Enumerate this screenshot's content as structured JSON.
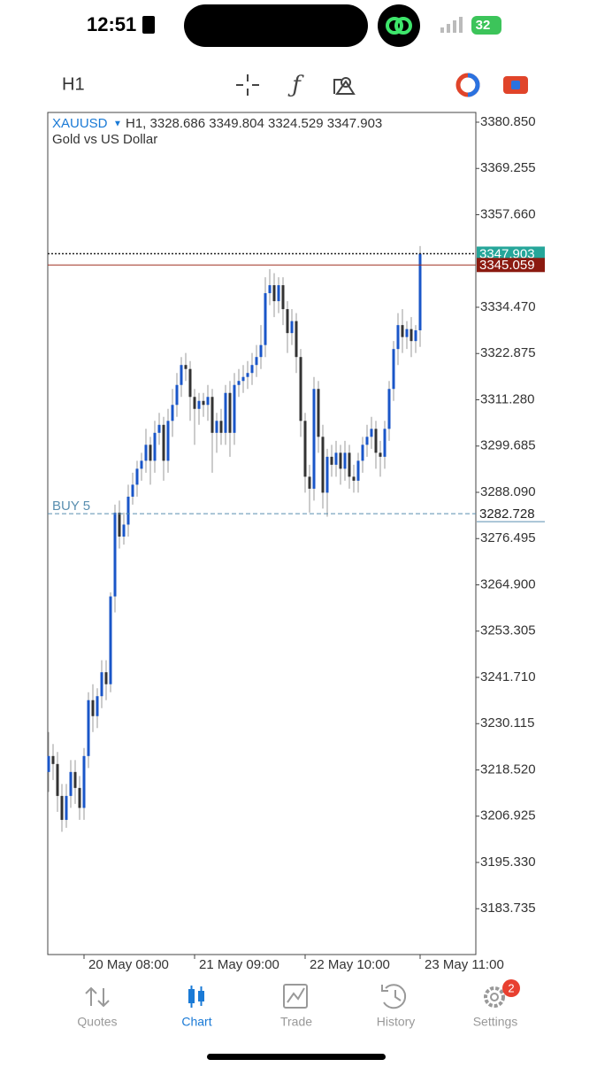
{
  "status_bar": {
    "time": "12:51",
    "battery": "32"
  },
  "toolbar": {
    "timeframe": "H1"
  },
  "chart_data": {
    "type": "candlestick",
    "symbol": "XAUUSD",
    "info": "H1, 3328.686 3349.804 3324.529 3347.903",
    "subtitle": "Gold vs US Dollar",
    "up_color": "#1a56c8",
    "down_color": "#333333",
    "categories": [
      null,
      null,
      null,
      null,
      null,
      null,
      null,
      null,
      "20 May 08:00",
      null,
      null,
      null,
      null,
      null,
      null,
      null,
      null,
      null,
      null,
      null,
      null,
      null,
      null,
      null,
      null,
      null,
      null,
      null,
      null,
      null,
      null,
      null,
      null,
      "21 May 09:00",
      null,
      null,
      null,
      null,
      null,
      null,
      null,
      null,
      null,
      null,
      null,
      null,
      null,
      null,
      null,
      null,
      null,
      null,
      null,
      null,
      null,
      null,
      null,
      null,
      "22 May 10:00",
      null,
      null,
      null,
      null,
      null,
      null,
      null,
      null,
      null,
      null,
      null,
      null,
      null,
      null,
      null,
      null,
      null,
      null,
      null,
      null,
      null,
      null,
      null,
      null,
      null,
      "23 May 11:00"
    ],
    "open": [
      3218,
      3222,
      3220,
      3212,
      3206,
      3212,
      3218,
      3214,
      3209,
      3222,
      3236,
      3232,
      3237,
      3243,
      3240,
      3262,
      3283,
      3277,
      3280,
      3287,
      3290,
      3294,
      3296,
      3300,
      3296,
      3303,
      3305,
      3296,
      3306,
      3310,
      3315,
      3320,
      3319,
      3312,
      3309,
      3311,
      3310,
      3312,
      3303,
      3306,
      3303,
      3313,
      3303,
      3315,
      3316,
      3317,
      3318,
      3320,
      3322,
      3325,
      3338,
      3340,
      3336,
      3340,
      3334,
      3328,
      3331,
      3322,
      3306,
      3292,
      3289,
      3314,
      3302,
      3288,
      3297,
      3295,
      3298,
      3294,
      3298,
      3292,
      3291,
      3296,
      3300,
      3302,
      3304,
      3298,
      3297,
      3304,
      3314,
      3324,
      3330,
      3327,
      3329,
      3326,
      3328.686
    ],
    "high": [
      3228,
      3225,
      3223,
      3215,
      3215,
      3221,
      3221,
      3217,
      3224,
      3238,
      3240,
      3239,
      3246,
      3246,
      3263,
      3285,
      3286,
      3283,
      3290,
      3293,
      3296,
      3298,
      3304,
      3302,
      3306,
      3308,
      3307,
      3309,
      3314,
      3318,
      3322,
      3323,
      3321,
      3314,
      3313,
      3313,
      3315,
      3314,
      3308,
      3309,
      3315,
      3316,
      3318,
      3319,
      3320,
      3321,
      3323,
      3325,
      3330,
      3342,
      3344,
      3343,
      3342,
      3342,
      3336,
      3334,
      3333,
      3324,
      3308,
      3295,
      3317,
      3316,
      3305,
      3299,
      3300,
      3301,
      3300,
      3301,
      3300,
      3295,
      3298,
      3302,
      3305,
      3307,
      3306,
      3301,
      3306,
      3316,
      3326,
      3333,
      3334,
      3331,
      3332,
      3330,
      3349.804
    ],
    "low": [
      3213,
      3216,
      3208,
      3203,
      3204,
      3209,
      3210,
      3206,
      3206,
      3219,
      3228,
      3229,
      3234,
      3236,
      3238,
      3258,
      3274,
      3275,
      3277,
      3285,
      3287,
      3291,
      3293,
      3290,
      3293,
      3300,
      3291,
      3293,
      3302,
      3307,
      3312,
      3316,
      3306,
      3300,
      3305,
      3307,
      3306,
      3293,
      3298,
      3300,
      3300,
      3297,
      3300,
      3312,
      3313,
      3314,
      3315,
      3317,
      3319,
      3322,
      3335,
      3332,
      3333,
      3330,
      3323,
      3325,
      3318,
      3302,
      3288,
      3283,
      3286,
      3298,
      3284,
      3282,
      3292,
      3292,
      3290,
      3291,
      3289,
      3288,
      3288,
      3293,
      3297,
      3299,
      3294,
      3292,
      3294,
      3301,
      3311,
      3320,
      3323,
      3324,
      3322,
      3323,
      3324.529
    ],
    "close": [
      3222,
      3220,
      3212,
      3206,
      3212,
      3218,
      3214,
      3209,
      3222,
      3236,
      3232,
      3237,
      3243,
      3240,
      3262,
      3283,
      3277,
      3280,
      3287,
      3290,
      3294,
      3296,
      3300,
      3296,
      3303,
      3305,
      3296,
      3306,
      3310,
      3315,
      3320,
      3319,
      3312,
      3309,
      3311,
      3310,
      3312,
      3303,
      3306,
      3303,
      3313,
      3303,
      3315,
      3316,
      3317,
      3318,
      3320,
      3322,
      3325,
      3338,
      3340,
      3336,
      3340,
      3334,
      3328,
      3331,
      3322,
      3306,
      3292,
      3289,
      3314,
      3302,
      3288,
      3297,
      3295,
      3298,
      3294,
      3298,
      3292,
      3291,
      3296,
      3300,
      3302,
      3304,
      3298,
      3297,
      3304,
      3314,
      3324,
      3330,
      3327,
      3329,
      3326,
      3328.686,
      3347.903
    ],
    "ylim": [
      3172.25,
      3383.29
    ],
    "yticks": [
      {
        "value": 3380.85,
        "label": "3380.850"
      },
      3369.255,
      {
        "value": 3357.66,
        "label": "3357.660"
      },
      {
        "value": 3334.47,
        "label": "3334.470"
      },
      3322.875,
      {
        "value": 3311.28,
        "label": "3311.280"
      },
      3299.685,
      {
        "value": 3288.09,
        "label": "3288.090"
      },
      3276.495,
      {
        "value": 3264.9,
        "label": "3264.900"
      },
      3253.305,
      {
        "value": 3241.71,
        "label": "3241.710"
      },
      3230.115,
      {
        "value": 3218.52,
        "label": "3218.520"
      },
      3206.925,
      {
        "value": 3195.33,
        "label": "3195.330"
      },
      3183.735
    ],
    "price_lines": [
      {
        "value": 3347.903,
        "color": "#26a69a",
        "line_color": "#222222",
        "style": "dotted"
      },
      {
        "value": 3345.059,
        "color": "#8b1a10",
        "line_color": "#a03020",
        "style": "solid"
      }
    ],
    "order": {
      "label": "BUY 5",
      "value": 3282.728,
      "color": "#5a8fb0"
    }
  },
  "tabs": [
    {
      "label": "Quotes",
      "active": false
    },
    {
      "label": "Chart",
      "active": true
    },
    {
      "label": "Trade",
      "active": false
    },
    {
      "label": "History",
      "active": false
    },
    {
      "label": "Settings",
      "active": false
    }
  ],
  "badge": "2"
}
